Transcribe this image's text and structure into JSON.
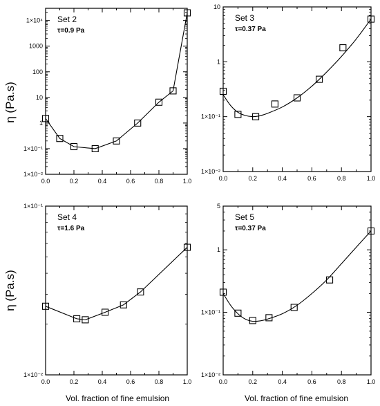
{
  "figure": {
    "y_axis_title_top": "η (Pa.s)",
    "y_axis_title_bottom": "η (Pa.s)",
    "x_axis_title_left": "Vol. fraction of fine emulsion",
    "x_axis_title_right": "Vol. fraction of fine emulsion"
  },
  "chart_data": [
    {
      "type": "line",
      "title": "Set 2",
      "annotation": "τ=0.9 Pa",
      "yscale": "log",
      "ylim": [
        0.01,
        30000
      ],
      "xlim": [
        0,
        1
      ],
      "x_ticks": [
        0.0,
        0.2,
        0.4,
        0.6,
        0.8,
        1.0
      ],
      "x_tick_labels": [
        "0.0",
        "0.2",
        "0.4",
        "0.6",
        "0.8",
        "1.0"
      ],
      "y_ticks": [
        0.01,
        0.1,
        1,
        10,
        100,
        1000,
        10000
      ],
      "y_tick_labels": [
        "1×10⁻²",
        "1×10⁻¹",
        "1",
        "10",
        "100",
        "1000",
        "1×10⁴"
      ],
      "curve": "piecewise",
      "series": [
        {
          "marker": "open-square",
          "x": [
            0.0,
            0.1,
            0.2,
            0.35,
            0.5,
            0.65,
            0.8,
            0.9,
            1.0
          ],
          "y": [
            1.5,
            0.25,
            0.12,
            0.1,
            0.2,
            1.0,
            6.5,
            18,
            20000
          ]
        }
      ]
    },
    {
      "type": "line",
      "title": "Set 3",
      "annotation": "τ=0.37 Pa",
      "yscale": "log",
      "ylim": [
        0.01,
        10
      ],
      "xlim": [
        0,
        1
      ],
      "x_ticks": [
        0.0,
        0.2,
        0.4,
        0.6,
        0.8,
        1.0
      ],
      "x_tick_labels": [
        "0.0",
        "0.2",
        "0.4",
        "0.6",
        "0.8",
        "1.0"
      ],
      "y_ticks": [
        0.01,
        0.1,
        1,
        10
      ],
      "y_tick_labels": [
        "1×10⁻²",
        "1×10⁻¹",
        "1",
        "10"
      ],
      "curve": "smooth",
      "fit": {
        "x": [
          0.0,
          0.05,
          0.1,
          0.15,
          0.2,
          0.25,
          0.3,
          0.4,
          0.5,
          0.6,
          0.7,
          0.8,
          0.9,
          1.0
        ],
        "y": [
          0.25,
          0.16,
          0.12,
          0.105,
          0.1,
          0.104,
          0.115,
          0.15,
          0.22,
          0.36,
          0.65,
          1.25,
          2.6,
          6.0
        ]
      },
      "series": [
        {
          "marker": "open-square",
          "x": [
            0.0,
            0.1,
            0.22,
            0.35,
            0.5,
            0.65,
            0.81,
            1.0
          ],
          "y": [
            0.29,
            0.11,
            0.1,
            0.17,
            0.22,
            0.48,
            1.8,
            6.0
          ]
        }
      ]
    },
    {
      "type": "line",
      "title": "Set 4",
      "annotation": "τ=1.6 Pa",
      "yscale": "log",
      "ylim": [
        0.01,
        0.1
      ],
      "xlim": [
        0,
        1
      ],
      "x_ticks": [
        0.0,
        0.2,
        0.4,
        0.6,
        0.8,
        1.0
      ],
      "x_tick_labels": [
        "0.0",
        "0.2",
        "0.4",
        "0.6",
        "0.8",
        "1.0"
      ],
      "y_ticks": [
        0.01,
        0.1
      ],
      "y_tick_labels": [
        "1×10⁻²",
        "1×10⁻¹"
      ],
      "curve": "piecewise",
      "series": [
        {
          "marker": "open-square",
          "x": [
            0.0,
            0.22,
            0.28,
            0.42,
            0.55,
            0.67,
            1.0
          ],
          "y": [
            0.0255,
            0.0215,
            0.0212,
            0.0235,
            0.026,
            0.031,
            0.057
          ]
        }
      ]
    },
    {
      "type": "line",
      "title": "Set 5",
      "annotation": "τ=0.37 Pa",
      "yscale": "log",
      "ylim": [
        0.01,
        5
      ],
      "xlim": [
        0,
        1
      ],
      "x_ticks": [
        0.0,
        0.2,
        0.4,
        0.6,
        0.8,
        1.0
      ],
      "x_tick_labels": [
        "0.0",
        "0.2",
        "0.4",
        "0.6",
        "0.8",
        "1.0"
      ],
      "y_ticks": [
        0.01,
        0.1,
        1,
        5
      ],
      "y_tick_labels": [
        "1×10⁻²",
        "1×10⁻¹",
        "1",
        "5"
      ],
      "curve": "smooth",
      "fit": {
        "x": [
          0.0,
          0.05,
          0.1,
          0.15,
          0.2,
          0.25,
          0.3,
          0.4,
          0.5,
          0.6,
          0.7,
          0.8,
          0.9,
          1.0
        ],
        "y": [
          0.2,
          0.13,
          0.095,
          0.078,
          0.072,
          0.073,
          0.078,
          0.095,
          0.13,
          0.2,
          0.33,
          0.6,
          1.1,
          2.0
        ]
      },
      "series": [
        {
          "marker": "open-square",
          "x": [
            0.0,
            0.1,
            0.2,
            0.31,
            0.48,
            0.72,
            1.0
          ],
          "y": [
            0.21,
            0.097,
            0.074,
            0.082,
            0.12,
            0.33,
            2.0
          ]
        }
      ]
    }
  ]
}
